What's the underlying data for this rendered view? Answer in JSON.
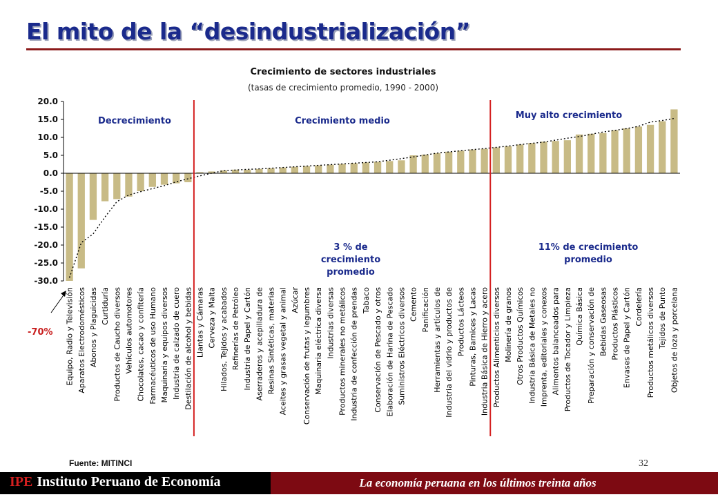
{
  "slide": {
    "title": "El mito de la “desindustrialización”",
    "source_note": "Fuente: MITINCI",
    "page_number": "32"
  },
  "footer": {
    "logo": "IPE",
    "org_name": "Instituto Peruano de Economía",
    "tagline": "La economía peruana en los últimos treinta años"
  },
  "colors": {
    "title": "#1a2a8c",
    "bars": "#c8bb86",
    "divider": "#d42020",
    "annotation": "#1a2a8c",
    "footer_left": "#000000",
    "footer_right": "#7d0a12"
  },
  "chart_data": {
    "type": "bar",
    "title": "Crecimiento de sectores industriales",
    "subtitle": "(tasas de crecimiento promedio, 1990 - 2000)",
    "ylim": [
      -30,
      20
    ],
    "yticks": [
      "20.0",
      "15.0",
      "10.0",
      "5.0",
      "0.0",
      "-5.0",
      "-10.0",
      "-15.0",
      "-20.0",
      "-25.0",
      "-30.0"
    ],
    "grid": false,
    "trendline": "dotted polynomial",
    "categories": [
      "Equipo, Radio y Televisión",
      "Aparatos Electrodomésticos",
      "Abonos y Plaguicidas",
      "Curtiduría",
      "Productos de Caucho diversos",
      "Vehículos automotores",
      "Chocolates, cacao y confitería",
      "Farmacéuticos de uso Humano",
      "Maquinaria y equipos diversos",
      "Industria de calzado de cuero",
      "Destilación de alcohol y bebidas",
      "Llantas y Cámaras",
      "Cerveza y Malta",
      "Hilados, Tejidos y acabados",
      "Refinerías de Petróleo",
      "Industria de Papel y Cartón",
      "Aserraderos y acepilladura de",
      "Resinas Sintéticas, materias",
      "Aceites y grasas vegetal y animal",
      "Azúcar",
      "Conservación de frutas y legumbres",
      "Maquinaria eléctrica diversa",
      "Industrias diversas",
      "Productos minerales no metálicos",
      "Industria de confección de prendas",
      "Tabaco",
      "Conservación de Pescado y otros",
      "Elaboración de Harina de Pescado",
      "Suministros Eléctricos diversos",
      "Cemento",
      "Panificación",
      "Herramientas y artículos de",
      "Industria del vidrio y productos de",
      "Productos Lácteos",
      "Pinturas, Barnices y Lacas",
      "Industria Básica de Hierro y acero",
      "Productos Alimenticios diversos",
      "Molinería de granos",
      "Otros Productos Químicos",
      "Industria Básica de Metales no",
      "Imprenta, editoriales y conexos",
      "Alimentos balanceados para",
      "Productos de Tocador y Limpieza",
      "Química Básica",
      "Preparación y conservación de",
      "Bebidas Gaseosas",
      "Productos Plásticos",
      "Envases de Papel y Cartón",
      "Cordelería",
      "Productos metálicos diversos",
      "Tejidos de Punto",
      "Objetos de loza y porcelana"
    ],
    "values": [
      -30.0,
      -26.5,
      -13.0,
      -7.8,
      -7.2,
      -6.5,
      -5.0,
      -3.8,
      -3.2,
      -2.8,
      -2.5,
      0.3,
      0.5,
      0.8,
      1.0,
      1.0,
      1.2,
      1.4,
      1.6,
      1.8,
      2.0,
      2.2,
      2.4,
      2.6,
      2.8,
      3.0,
      3.2,
      3.4,
      3.6,
      5.0,
      5.2,
      5.6,
      6.0,
      6.3,
      6.6,
      6.8,
      7.2,
      7.5,
      8.0,
      8.4,
      8.8,
      9.0,
      9.2,
      10.8,
      11.0,
      11.2,
      12.0,
      12.5,
      13.0,
      13.5,
      14.5,
      17.8
    ],
    "regions": [
      {
        "label": "Decrecimiento"
      },
      {
        "label": "Crecimiento medio",
        "note": "3 % de crecimiento promedio"
      },
      {
        "label": "Muy alto crecimiento",
        "note": "11% de crecimiento promedio"
      }
    ],
    "dividers_after_index": [
      10,
      35
    ],
    "callout": "-70%"
  }
}
